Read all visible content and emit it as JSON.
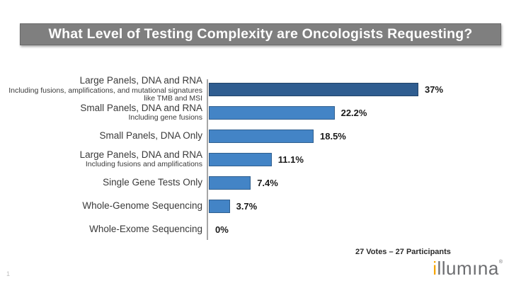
{
  "slide": {
    "title": "What Level of Testing Complexity are Oncologists Requesting?",
    "footer_note": "27 Votes – 27 Participants",
    "page_number": "1",
    "logo": {
      "first_letter": "i",
      "middle": "llum",
      "dotless_i": "ı",
      "end": "na",
      "mark": "®",
      "orange": "#f6a500",
      "gray": "#6d6e71"
    }
  },
  "chart_data": {
    "type": "bar",
    "orientation": "horizontal",
    "title": "",
    "xlabel": "",
    "ylabel": "",
    "xlim": [
      0,
      40
    ],
    "grid": false,
    "legend": false,
    "highlight_index": 0,
    "colors": {
      "highlight_bar": "#2f5d90",
      "default_bar": "#4384c6",
      "axis_line": "#a6a6a6"
    },
    "categories": [
      {
        "label": "Large Panels, DNA and RNA",
        "sublabel": "Including fusions, amplifications, and mutational signatures like TMB and MSI",
        "value": 37,
        "value_label": "37%"
      },
      {
        "label": "Small Panels, DNA and RNA",
        "sublabel": "Including gene fusions",
        "value": 22.2,
        "value_label": "22.2%"
      },
      {
        "label": "Small Panels, DNA Only",
        "sublabel": "",
        "value": 18.5,
        "value_label": "18.5%"
      },
      {
        "label": "Large Panels, DNA and RNA",
        "sublabel": "Including fusions and amplifications",
        "value": 11.1,
        "value_label": "11.1%"
      },
      {
        "label": "Single Gene Tests Only",
        "sublabel": "",
        "value": 7.4,
        "value_label": "7.4%"
      },
      {
        "label": "Whole-Genome Sequencing",
        "sublabel": "",
        "value": 3.7,
        "value_label": "3.7%"
      },
      {
        "label": "Whole-Exome Sequencing",
        "sublabel": "",
        "value": 0,
        "value_label": "0%"
      }
    ]
  }
}
